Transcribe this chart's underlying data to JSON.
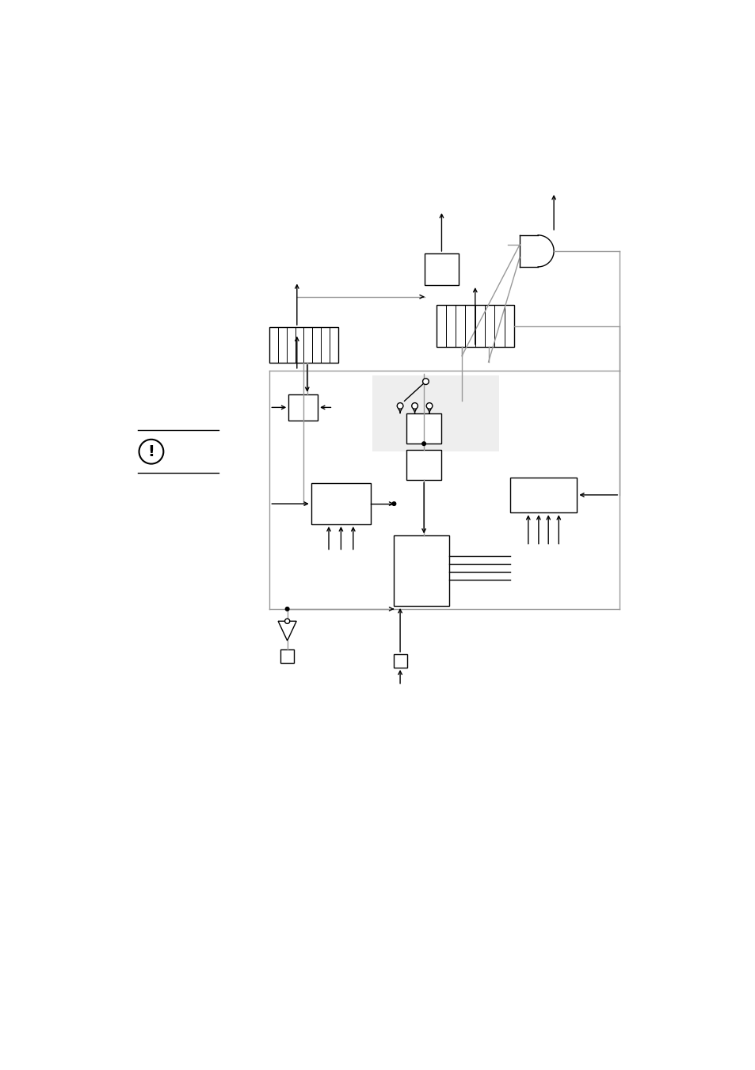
{
  "bg_color": "#ffffff",
  "fig_width": 9.54,
  "fig_height": 13.51,
  "dpi": 100
}
